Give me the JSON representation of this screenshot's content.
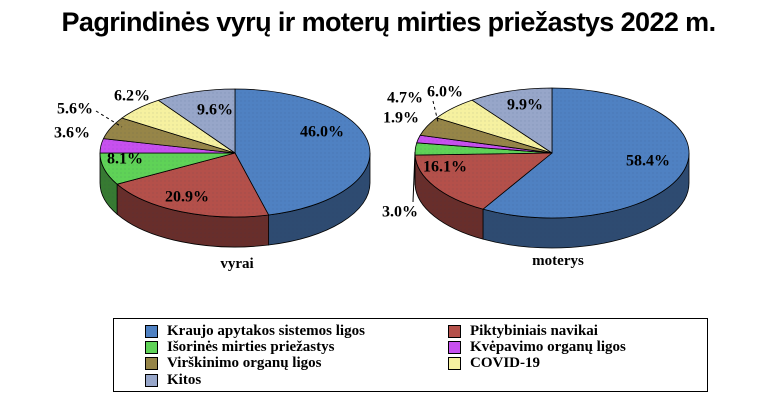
{
  "title": "Pagrindinės vyrų ir moterų mirties priežastys 2022 m.",
  "chart_data": {
    "type": "pie",
    "style": "3d",
    "unit": "%",
    "categories": [
      "Kraujo apytakos sistemos ligos",
      "Piktybiniais navikai",
      "Išorinės mirties priežastys",
      "Kvėpavimo organų ligos",
      "Virškinimo organų ligos",
      "COVID-19",
      "Kitos"
    ],
    "colors": [
      "#4f81c2",
      "#b4504a",
      "#5fd257",
      "#c750ef",
      "#968548",
      "#f6f1a0",
      "#97a6c9"
    ],
    "legend": {
      "position": "bottom",
      "columns": 2,
      "border": true
    },
    "pies": [
      {
        "label": "vyrai",
        "values": [
          46.0,
          20.9,
          8.1,
          3.6,
          5.6,
          6.2,
          9.6
        ],
        "value_labels": [
          "46.0%",
          "20.9%",
          "8.1%",
          "3.6%",
          "5.6%",
          "6.2%",
          "9.6%"
        ]
      },
      {
        "label": "moterys",
        "values": [
          58.4,
          16.1,
          3.0,
          1.9,
          4.7,
          6.0,
          9.9
        ],
        "value_labels": [
          "58.4%",
          "16.1%",
          "3.0%",
          "1.9%",
          "4.7%",
          "6.0%",
          "9.9%"
        ]
      }
    ]
  }
}
